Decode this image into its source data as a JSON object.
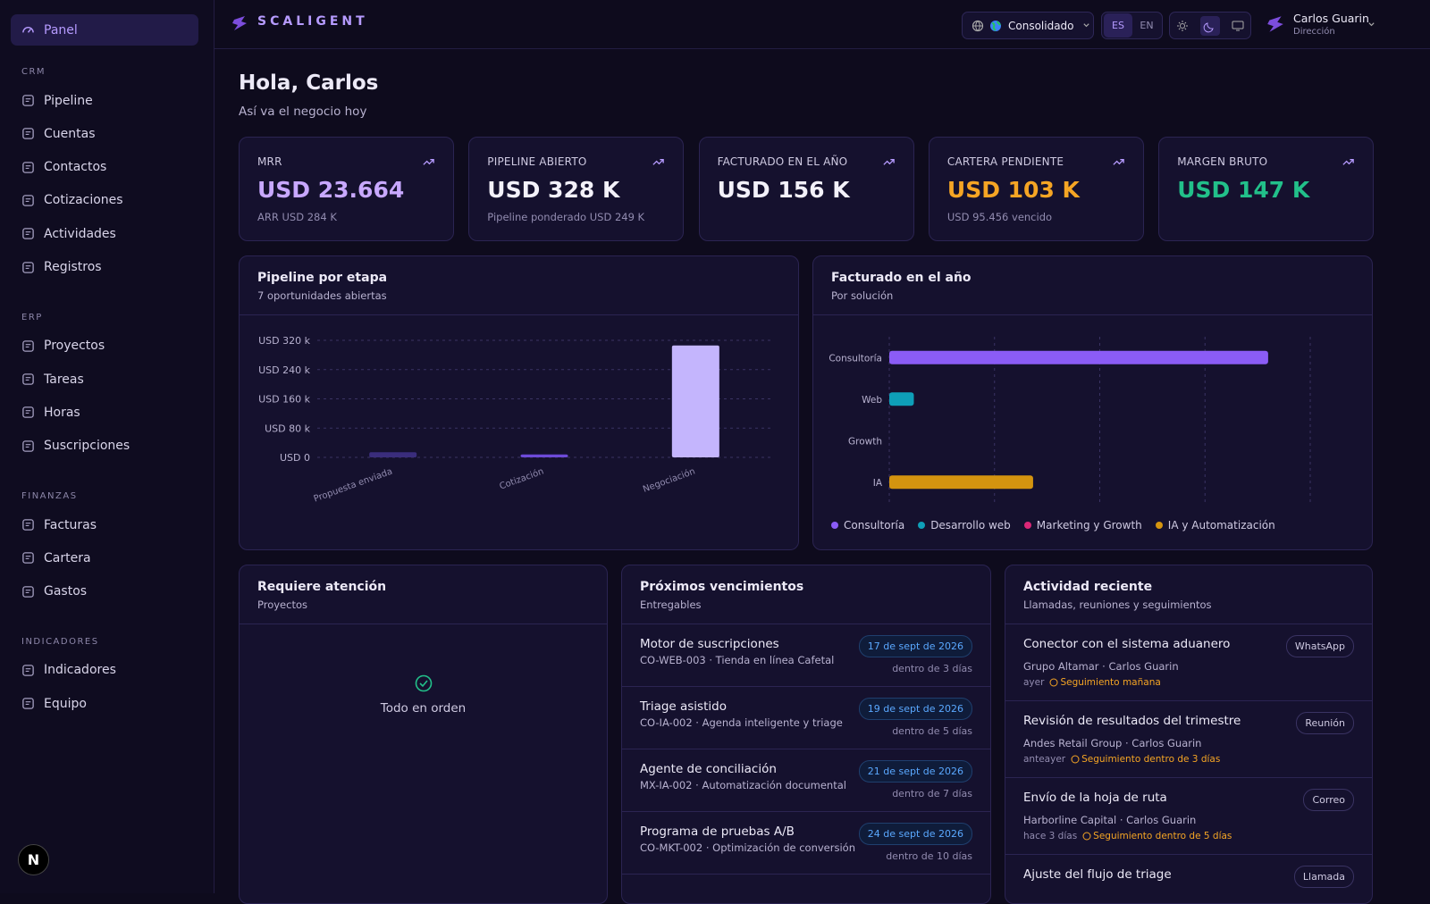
{
  "sidebar": {
    "active": "Panel",
    "sections": [
      {
        "title": "CRM",
        "items": [
          "Pipeline",
          "Cuentas",
          "Contactos",
          "Cotizaciones",
          "Actividades",
          "Registros"
        ]
      },
      {
        "title": "ERP",
        "items": [
          "Proyectos",
          "Tareas",
          "Horas",
          "Suscripciones"
        ]
      },
      {
        "title": "FINANZAS",
        "items": [
          "Facturas",
          "Cartera",
          "Gastos"
        ]
      },
      {
        "title": "INDICADORES",
        "items": [
          "Indicadores",
          "Equipo"
        ]
      }
    ],
    "dev_badge": "N"
  },
  "header": {
    "brand": "SCALIGENT",
    "scope": "Consolidado",
    "languages": [
      "ES",
      "EN"
    ],
    "user": {
      "name": "Carlos Guarin",
      "role": "Dirección"
    }
  },
  "greeting": {
    "title": "Hola, Carlos",
    "subtitle": "Así va el negocio hoy"
  },
  "kpis": [
    {
      "label": "MRR",
      "value": "USD 23.664",
      "note": "ARR USD 284 K",
      "color": "#c8a8ff"
    },
    {
      "label": "PIPELINE ABIERTO",
      "value": "USD 328 K",
      "note": "Pipeline ponderado USD 249 K",
      "color": "#f3f1fa"
    },
    {
      "label": "FACTURADO EN EL AÑO",
      "value": "USD 156 K",
      "color": "#f3f1fa"
    },
    {
      "label": "CARTERA PENDIENTE",
      "value": "USD 103 K",
      "note": "USD 95.456 vencido",
      "color": "#f5a524"
    },
    {
      "label": "MARGEN BRUTO",
      "value": "USD 147 K",
      "color": "#22c08a"
    }
  ],
  "chart_data": [
    {
      "type": "bar",
      "title": "Pipeline por etapa",
      "subtitle": "7 oportunidades abiertas",
      "categories": [
        "Propuesta enviada",
        "Cotización",
        "Negociación"
      ],
      "values": [
        14000,
        8000,
        306000
      ],
      "colors": [
        "#3a2d7c",
        "#6d4ad8",
        "#c4b5fd"
      ],
      "ylim": [
        0,
        320000
      ],
      "yticks": [
        {
          "value": 0,
          "label": "USD 0"
        },
        {
          "value": 80000,
          "label": "USD 80 k"
        },
        {
          "value": 160000,
          "label": "USD 160 k"
        },
        {
          "value": 240000,
          "label": "USD 240 k"
        },
        {
          "value": 320000,
          "label": "USD 320 k"
        }
      ],
      "grid": true
    },
    {
      "type": "bar",
      "horizontal": true,
      "title": "Facturado en el año",
      "subtitle": "Por solución",
      "categories": [
        "Consultoría",
        "Web",
        "Growth",
        "IA"
      ],
      "values": [
        108000,
        7000,
        0,
        41000
      ],
      "colors": [
        "#8b5cf6",
        "#0e9fb8",
        "#db2777",
        "#d4940f"
      ],
      "legend": [
        "Consultoría",
        "Desarrollo web",
        "Marketing y Growth",
        "IA y Automatización"
      ],
      "xlim": [
        0,
        120000
      ],
      "xticks": [
        0,
        30000,
        60000,
        90000,
        120000
      ],
      "grid": true
    }
  ],
  "attention": {
    "title": "Requiere atención",
    "subtitle": "Proyectos",
    "empty": "Todo en orden"
  },
  "deadlines": {
    "title": "Próximos vencimientos",
    "subtitle": "Entregables",
    "items": [
      {
        "title": "Motor de suscripciones",
        "meta": "CO-WEB-003 · Tienda en línea Cafetal",
        "date": "17 de sept de 2026",
        "due": "dentro de 3 días"
      },
      {
        "title": "Triage asistido",
        "meta": "CO-IA-002 · Agenda inteligente y triage",
        "date": "19 de sept de 2026",
        "due": "dentro de 5 días"
      },
      {
        "title": "Agente de conciliación",
        "meta": "MX-IA-002 · Automatización documental",
        "date": "21 de sept de 2026",
        "due": "dentro de 7 días"
      },
      {
        "title": "Programa de pruebas A/B",
        "meta": "CO-MKT-002 · Optimización de conversión",
        "date": "24 de sept de 2026",
        "due": "dentro de 10 días"
      }
    ]
  },
  "activity": {
    "title": "Actividad reciente",
    "subtitle": "Llamadas, reuniones y seguimientos",
    "items": [
      {
        "title": "Conector con el sistema aduanero",
        "tag": "WhatsApp",
        "meta": "Grupo Altamar · Carlos Guarin",
        "when": "ayer",
        "followup": "Seguimiento mañana"
      },
      {
        "title": "Revisión de resultados del trimestre",
        "tag": "Reunión",
        "meta": "Andes Retail Group · Carlos Guarin",
        "when": "anteayer",
        "followup": "Seguimiento dentro de 3 días"
      },
      {
        "title": "Envío de la hoja de ruta",
        "tag": "Correo",
        "meta": "Harborline Capital · Carlos Guarin",
        "when": "hace 3 días",
        "followup": "Seguimiento dentro de 5 días"
      },
      {
        "title": "Ajuste del flujo de triage",
        "tag": "Llamada"
      }
    ]
  }
}
